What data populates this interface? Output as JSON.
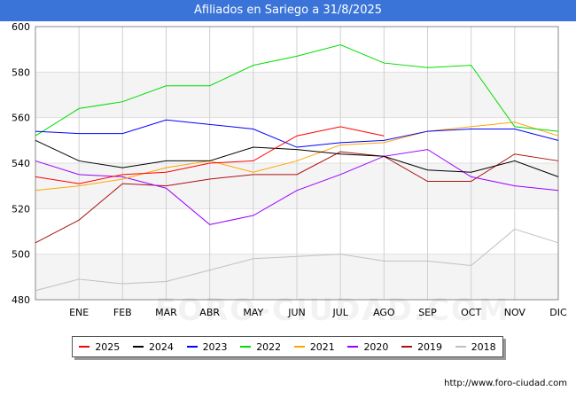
{
  "title": "Afiliados en Sariego a 31/8/2025",
  "source": "http://www.foro-ciudad.com",
  "watermark": "FORO-CIUDAD.COM",
  "chart_data": {
    "type": "line",
    "title": "Afiliados en Sariego a 31/8/2025",
    "categories": [
      "",
      "ENE",
      "FEB",
      "MAR",
      "ABR",
      "MAY",
      "JUN",
      "JUL",
      "AGO",
      "SEP",
      "OCT",
      "NOV",
      "DIC"
    ],
    "ylim": [
      480,
      600
    ],
    "yticks": [
      480,
      500,
      520,
      540,
      560,
      580,
      600
    ],
    "grid": true,
    "legend_position": "bottom",
    "series": [
      {
        "name": "2025",
        "color": "#ff0000",
        "values": [
          534,
          531,
          535,
          536,
          540,
          541,
          552,
          556,
          552,
          null,
          null,
          null,
          null
        ]
      },
      {
        "name": "2024",
        "color": "#000000",
        "values": [
          550,
          541,
          538,
          541,
          541,
          547,
          546,
          544,
          543,
          537,
          536,
          541,
          534
        ]
      },
      {
        "name": "2023",
        "color": "#0000ff",
        "values": [
          554,
          553,
          553,
          559,
          557,
          555,
          547,
          549,
          550,
          554,
          555,
          555,
          550
        ]
      },
      {
        "name": "2022",
        "color": "#00dd00",
        "values": [
          552,
          564,
          567,
          574,
          574,
          583,
          587,
          592,
          584,
          582,
          583,
          556,
          554
        ]
      },
      {
        "name": "2021",
        "color": "#ffa500",
        "values": [
          528,
          530,
          533,
          538,
          541,
          536,
          541,
          548,
          549,
          554,
          556,
          558,
          552
        ]
      },
      {
        "name": "2020",
        "color": "#9a00ff",
        "values": [
          541,
          535,
          534,
          529,
          513,
          517,
          528,
          535,
          543,
          546,
          534,
          530,
          528
        ]
      },
      {
        "name": "2019",
        "color": "#aa1111",
        "values": [
          505,
          515,
          531,
          530,
          533,
          535,
          535,
          545,
          543,
          532,
          532,
          544,
          541
        ]
      },
      {
        "name": "2018",
        "color": "#c0c0c0",
        "values": [
          484,
          489,
          487,
          488,
          493,
          498,
          499,
          500,
          497,
          497,
          495,
          511,
          505
        ]
      }
    ]
  }
}
